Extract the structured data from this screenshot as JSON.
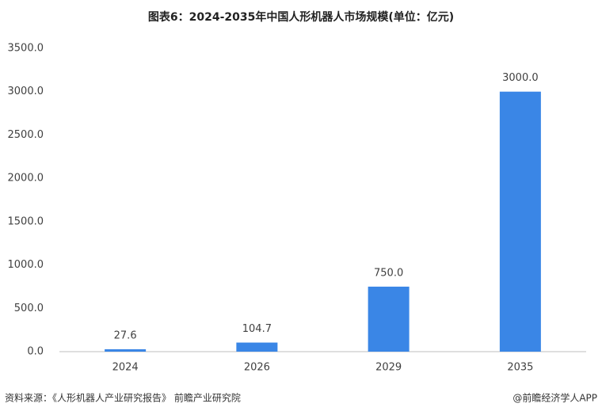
{
  "chart_data": {
    "type": "bar",
    "title": "图表6：2024-2035年中国人形机器人市场规模(单位：亿元)",
    "categories": [
      "2024",
      "2026",
      "2029",
      "2035"
    ],
    "values": [
      27.6,
      104.7,
      750,
      3000
    ],
    "value_labels": [
      "27.6",
      "104.7",
      "750.0",
      "3000.0"
    ],
    "color": "#3a86e6",
    "ylim": [
      0,
      3500
    ],
    "yticks": [
      {
        "value": 0,
        "label": "0.0"
      },
      {
        "value": 500,
        "label": "500.0"
      },
      {
        "value": 1000,
        "label": "1000.0"
      },
      {
        "value": 1500,
        "label": "1500.0"
      },
      {
        "value": 2000,
        "label": "2000.0"
      },
      {
        "value": 2500,
        "label": "2500.0"
      },
      {
        "value": 3000,
        "label": "3000.0"
      },
      {
        "value": 3500,
        "label": "3500.0"
      }
    ],
    "grid": false,
    "source": "资料来源：《人形机器人产业研究报告》 前瞻产业研究院",
    "credit": "@前瞻经济学人APP"
  }
}
